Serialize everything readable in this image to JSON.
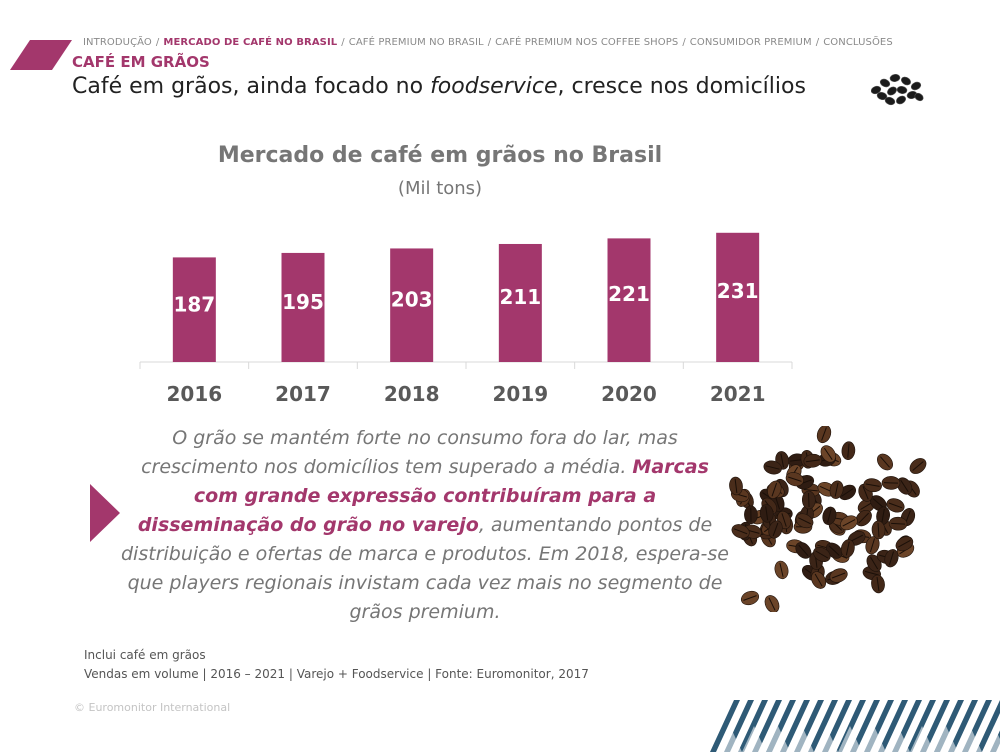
{
  "breadcrumb": {
    "items": [
      {
        "label": "INTRODUÇÃO",
        "active": false
      },
      {
        "label": "MERCADO DE CAFÉ NO BRASIL",
        "active": true
      },
      {
        "label": "CAFÉ PREMIUM NO BRASIL",
        "active": false
      },
      {
        "label": "CAFÉ PREMIUM NOS COFFEE SHOPS",
        "active": false
      },
      {
        "label": "CONSUMIDOR PREMIUM",
        "active": false
      },
      {
        "label": "CONCLUSÕES",
        "active": false
      }
    ],
    "separator": "/"
  },
  "section_label": "CAFÉ EM GRÃOS",
  "page_title": {
    "before": "Café em grãos, ainda focado no ",
    "emphasis": "foodservice",
    "after": ", cresce nos domicílios"
  },
  "chart_data": {
    "type": "bar",
    "title": "Mercado de café em grãos no Brasil",
    "subtitle": "(Mil tons)",
    "categories": [
      "2016",
      "2017",
      "2018",
      "2019",
      "2020",
      "2021"
    ],
    "values": [
      187,
      195,
      203,
      211,
      221,
      231
    ],
    "value_labels": [
      "187",
      "195",
      "203",
      "211",
      "221",
      "231"
    ],
    "bar_color": "#a3376c",
    "data_labels": "inside",
    "ylim": [
      0,
      250
    ],
    "grid": false,
    "legend": "none"
  },
  "body": {
    "intro": "O grão se mantém forte no consumo fora do lar, mas crescimento nos domicílios tem superado a média. ",
    "highlight": "Marcas com grande expressão contribuíram para a disseminação do grão no varejo",
    "rest": ", aumentando pontos de distribuição e ofertas de marca e produtos. Em 2018, espera-se que players regionais invistam cada vez mais no segmento de grãos premium."
  },
  "footnote": {
    "line1": "Inclui café em grãos",
    "line2": "Vendas em volume | 2016 – 2021 | Varejo + Foodservice | Fonte: Euromonitor, 2017"
  },
  "copyright": "© Euromonitor International",
  "colors": {
    "accent": "#a3376c",
    "muted_text": "#767676",
    "pattern": "#2e5a76"
  },
  "icons": {
    "header_image": "coffee-beans-icon",
    "side_marker": "triangle-arrow-icon",
    "illustration": "coffee-beans-pile"
  }
}
